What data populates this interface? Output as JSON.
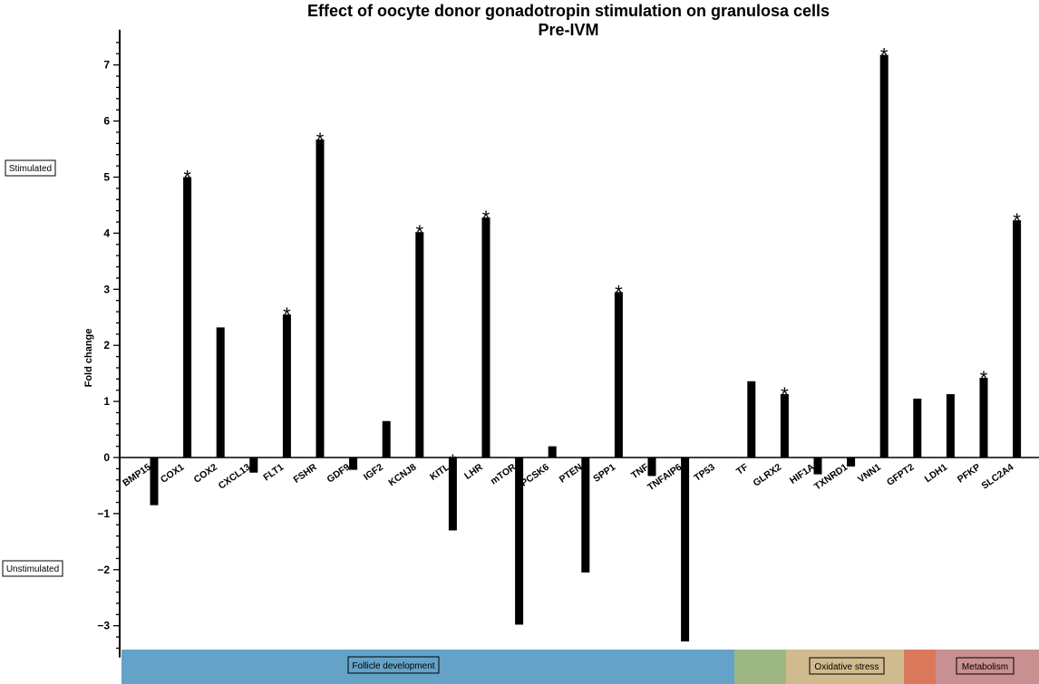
{
  "chart_data": {
    "type": "bar",
    "title": "Effect of oocyte donor gonadotropin stimulation on granulosa cells",
    "subtitle": "Pre-IVM",
    "ylabel": "Fold change",
    "xlabel": "",
    "ylim": [
      -3.5,
      7.5
    ],
    "yticks": [
      -3,
      -2,
      -1,
      0,
      1,
      2,
      3,
      4,
      5,
      6,
      7
    ],
    "ytick_labels": [
      "−3",
      "−2",
      "−1",
      "0",
      "1",
      "2",
      "3",
      "4",
      "5",
      "6",
      "7"
    ],
    "grid": false,
    "bar_color": "#000000",
    "categories": [
      "BMP15",
      "COX1",
      "COX2",
      "CXCL13",
      "FLT1",
      "FSHR",
      "GDF9",
      "IGF2",
      "KCNJ8",
      "KITL",
      "LHR",
      "mTOR",
      "PCSK6",
      "PTEN",
      "SPP1",
      "TNF",
      "TNFAIP6",
      "TP53",
      "TF",
      "GLRX2",
      "HIF1A",
      "TXNRD1",
      "VNN1",
      "GFPT2",
      "LDH1",
      "PFKP",
      "SLC2A4"
    ],
    "values": [
      -0.85,
      5.0,
      2.32,
      -0.27,
      2.55,
      5.67,
      -0.22,
      0.65,
      4.02,
      -1.3,
      4.28,
      -2.98,
      0.2,
      -2.05,
      2.95,
      -0.33,
      -3.28,
      0.0,
      1.36,
      1.13,
      -0.3,
      -0.16,
      7.18,
      1.05,
      1.13,
      1.42,
      4.23
    ],
    "significant": [
      false,
      true,
      false,
      false,
      true,
      true,
      false,
      false,
      true,
      true,
      true,
      false,
      false,
      false,
      true,
      false,
      false,
      false,
      false,
      true,
      false,
      false,
      true,
      false,
      false,
      true,
      true
    ],
    "significance_marker": "*",
    "side_labels": {
      "upper": "Stimulated",
      "lower": "Unstimulated"
    },
    "groups": [
      {
        "name": "Follicle development",
        "color": "#64a3c7",
        "labeled": true
      },
      {
        "name": "",
        "color": "#9cb684",
        "labeled": false
      },
      {
        "name": "Oxidative stress",
        "color": "#cfbb8e",
        "labeled": true
      },
      {
        "name": "",
        "color": "#d9785a",
        "labeled": false
      },
      {
        "name": "Metabolism",
        "color": "#c99091",
        "labeled": true
      }
    ]
  }
}
